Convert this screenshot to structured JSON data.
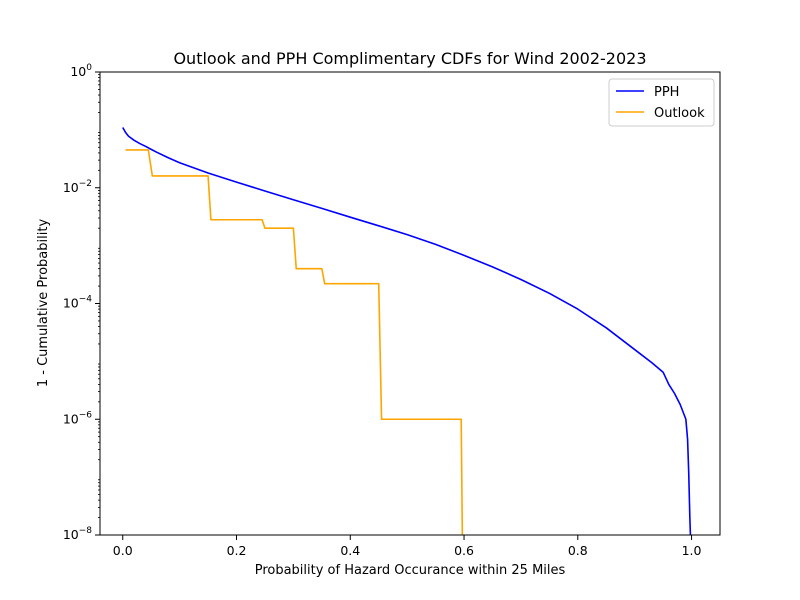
{
  "chart_data": {
    "type": "line",
    "title": "Outlook and PPH Complimentary CDFs for Wind 2002-2023",
    "xlabel": "Probability of Hazard Occurance within 25 Miles",
    "ylabel": "1 - Cumulative Probability",
    "xlim": [
      -0.04,
      1.05
    ],
    "ylim": [
      1e-08,
      1
    ],
    "yscale": "log",
    "grid": false,
    "legend_position": "top-right",
    "x_ticks": [
      {
        "value": 0.0,
        "label": "0.0"
      },
      {
        "value": 0.2,
        "label": "0.2"
      },
      {
        "value": 0.4,
        "label": "0.4"
      },
      {
        "value": 0.6,
        "label": "0.6"
      },
      {
        "value": 0.8,
        "label": "0.8"
      },
      {
        "value": 1.0,
        "label": "1.0"
      }
    ],
    "y_ticks": [
      {
        "value": 1,
        "base": "10",
        "exp": "0"
      },
      {
        "value": 0.01,
        "base": "10",
        "exp": "−2"
      },
      {
        "value": 0.0001,
        "base": "10",
        "exp": "−4"
      },
      {
        "value": 1e-06,
        "base": "10",
        "exp": "−6"
      },
      {
        "value": 1e-08,
        "base": "10",
        "exp": "−8"
      }
    ],
    "series": [
      {
        "name": "PPH",
        "color": "#0000ff",
        "points": [
          [
            0.0,
            0.11
          ],
          [
            0.005,
            0.09
          ],
          [
            0.01,
            0.078
          ],
          [
            0.02,
            0.066
          ],
          [
            0.03,
            0.058
          ],
          [
            0.04,
            0.052
          ],
          [
            0.05,
            0.046
          ],
          [
            0.06,
            0.041
          ],
          [
            0.08,
            0.033
          ],
          [
            0.1,
            0.027
          ],
          [
            0.15,
            0.018
          ],
          [
            0.2,
            0.0125
          ],
          [
            0.25,
            0.0088
          ],
          [
            0.3,
            0.0062
          ],
          [
            0.35,
            0.0044
          ],
          [
            0.4,
            0.0031
          ],
          [
            0.45,
            0.0022
          ],
          [
            0.5,
            0.00155
          ],
          [
            0.55,
            0.00105
          ],
          [
            0.6,
            0.00068
          ],
          [
            0.65,
            0.00043
          ],
          [
            0.7,
            0.00026
          ],
          [
            0.75,
            0.00015
          ],
          [
            0.8,
            8e-05
          ],
          [
            0.85,
            3.8e-05
          ],
          [
            0.9,
            1.6e-05
          ],
          [
            0.93,
            9.5e-06
          ],
          [
            0.95,
            6.5e-06
          ],
          [
            0.96,
            4e-06
          ],
          [
            0.97,
            2.8e-06
          ],
          [
            0.98,
            1.8e-06
          ],
          [
            0.99,
            1e-06
          ],
          [
            0.993,
            4.5e-07
          ],
          [
            0.995,
            1.2e-07
          ],
          [
            0.997,
            2e-08
          ],
          [
            0.998,
            1e-08
          ]
        ]
      },
      {
        "name": "Outlook",
        "color": "#ffa500",
        "points": [
          [
            0.005,
            0.045
          ],
          [
            0.045,
            0.045
          ],
          [
            0.052,
            0.016
          ],
          [
            0.15,
            0.016
          ],
          [
            0.155,
            0.0028
          ],
          [
            0.245,
            0.0028
          ],
          [
            0.25,
            0.002
          ],
          [
            0.3,
            0.002
          ],
          [
            0.305,
            0.0004
          ],
          [
            0.35,
            0.0004
          ],
          [
            0.355,
            0.00022
          ],
          [
            0.45,
            0.00022
          ],
          [
            0.455,
            1e-06
          ],
          [
            0.595,
            1e-06
          ],
          [
            0.597,
            1e-08
          ]
        ]
      }
    ]
  }
}
